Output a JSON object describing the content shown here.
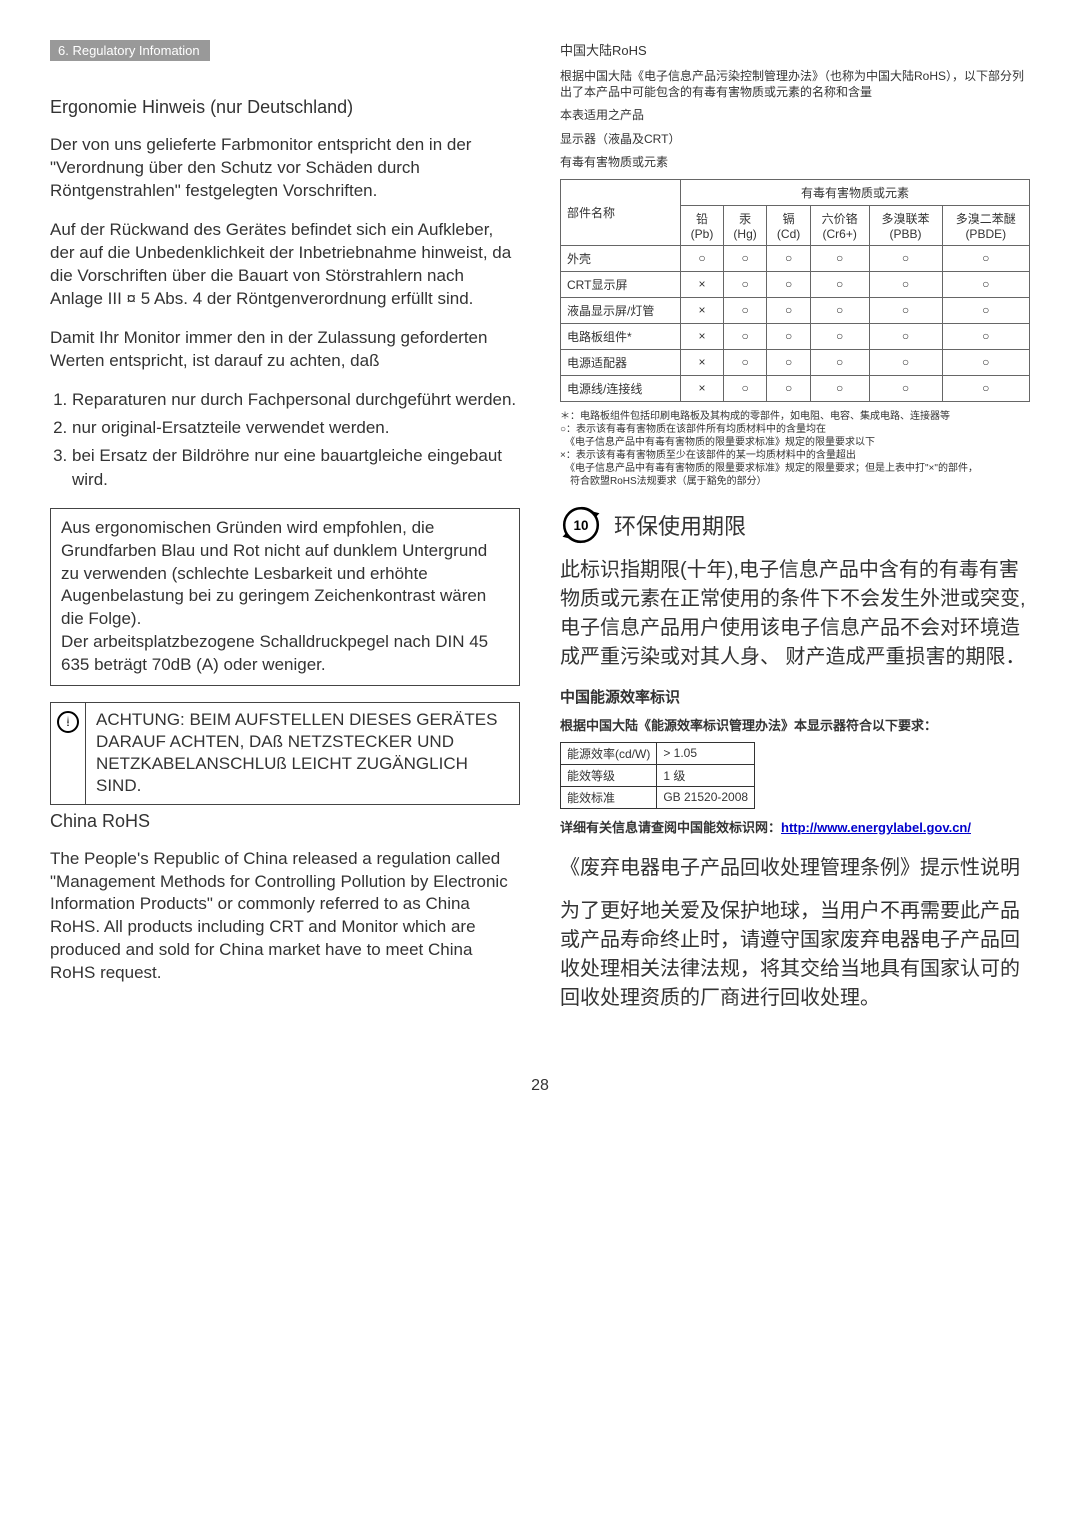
{
  "sectionTag": "6. Regulatory Infomation",
  "left": {
    "ergHeading": "Ergonomie Hinweis (nur Deutschland)",
    "p1": "Der von uns gelieferte Farbmonitor entspricht den in der \"Verordnung über den Schutz vor Schäden durch Röntgenstrahlen\" festgelegten Vorschriften.",
    "p2": "Auf der Rückwand des Gerätes befindet sich ein Aufkleber, der auf die Unbedenklichkeit der Inbetriebnahme hinweist, da die Vorschriften über die Bauart von Störstrahlern nach Anlage III ¤ 5 Abs. 4 der Röntgenverordnung erfüllt sind.",
    "p3": "Damit Ihr Monitor immer den in der Zulassung geforderten Werten entspricht, ist darauf zu achten, daß",
    "li1": "Reparaturen nur durch Fachpersonal durchgeführt werden.",
    "li2": "nur original-Ersatzteile verwendet werden.",
    "li3": "bei Ersatz der Bildröhre nur eine bauartgleiche eingebaut wird.",
    "box1": "Aus ergonomischen Gründen wird empfohlen, die Grundfarben Blau und Rot nicht auf dunklem Untergrund zu verwenden (schlechte Lesbarkeit und erhöhte Augenbelastung bei zu geringem Zeichenkontrast wären die Folge).\nDer arbeitsplatzbezogene Schalldruckpegel nach DIN 45 635 beträgt 70dB (A) oder weniger.",
    "achtung": "ACHTUNG: BEIM AUFSTELLEN DIESES GERÄTES DARAUF ACHTEN, DAß NETZSTECKER UND NETZKABELANSCHLUß LEICHT ZUGÄNGLICH SIND.",
    "chinaHeading": "China RoHS",
    "chinaPara": "The People's Republic of China released a regulation called \"Management Methods for Controlling Pollution by Electronic Information Products\" or commonly referred to as China RoHS. All products including CRT and Monitor which are produced and sold for China market have to meet China RoHS request."
  },
  "right": {
    "titleCN": "中国大陆RoHS",
    "introCN": "根据中国大陆《电子信息产品污染控制管理办法》（也称为中国大陆RoHS），以下部分列出了本产品中可能包含的有毒有害物质或元素的名称和含量",
    "applProd": "本表适用之产品",
    "dispType": "显示器（液晶及CRT）",
    "toxTitle": "有毒有害物质或元素",
    "table": {
      "nameHeader": "部件名称",
      "groupHeader": "有毒有害物质或元素",
      "cols": [
        {
          "zh": "铅",
          "en": "(Pb)"
        },
        {
          "zh": "汞",
          "en": "(Hg)"
        },
        {
          "zh": "镉",
          "en": "(Cd)"
        },
        {
          "zh": "六价铬",
          "en": "(Cr6+)"
        },
        {
          "zh": "多溴联苯",
          "en": "(PBB)"
        },
        {
          "zh": "多溴二苯醚",
          "en": "(PBDE)"
        }
      ],
      "rows": [
        {
          "name": "外壳",
          "vals": [
            "○",
            "○",
            "○",
            "○",
            "○",
            "○"
          ]
        },
        {
          "name": "CRT显示屏",
          "vals": [
            "×",
            "○",
            "○",
            "○",
            "○",
            "○"
          ]
        },
        {
          "name": "液晶显示屏/灯管",
          "vals": [
            "×",
            "○",
            "○",
            "○",
            "○",
            "○"
          ]
        },
        {
          "name": "电路板组件*",
          "vals": [
            "×",
            "○",
            "○",
            "○",
            "○",
            "○"
          ]
        },
        {
          "name": "电源适配器",
          "vals": [
            "×",
            "○",
            "○",
            "○",
            "○",
            "○"
          ]
        },
        {
          "name": "电源线/连接线",
          "vals": [
            "×",
            "○",
            "○",
            "○",
            "○",
            "○"
          ]
        }
      ]
    },
    "notes": "＊：电路板组件包括印刷电路板及其构成的零部件，如电阻、电容、集成电路、连接器等\n○：表示该有毒有害物质在该部件所有均质材料中的含量均在\n　《电子信息产品中有毒有害物质的限量要求标准》规定的限量要求以下\n×：表示该有毒有害物质至少在该部件的某一均质材料中的含量超出\n　《电子信息产品中有毒有害物质的限量要求标准》规定的限量要求；但是上表中打\"×\"的部件，\n　符合欧盟RoHS法规要求（属于豁免的部分）",
    "envTitle": "环保使用期限",
    "envNum": "10",
    "envPara": "此标识指期限(十年),电子信息产品中含有的有毒有害物质或元素在正常使用的条件下不会发生外泄或突变, 电子信息产品用户使用该电子信息产品不会对环境造成严重污染或对其人身、 财产造成严重损害的期限．",
    "energyHead": "中国能源效率标识",
    "energyIntro": "根据中国大陆《能源效率标识管理办法》本显示器符合以下要求：",
    "energyTable": {
      "rows": [
        {
          "k": "能源效率(cd/W)",
          "v": "> 1.05"
        },
        {
          "k": "能效等级",
          "v": "1 级"
        },
        {
          "k": "能效标准",
          "v": "GB 21520-2008"
        }
      ]
    },
    "linkPrefix": "详细有关信息请查阅中国能效标识网：",
    "linkText": "http://www.energylabel.gov.cn/",
    "recycleTitle": "《废弃电器电子产品回收处理管理条例》提示性说明",
    "recyclePara": "为了更好地关爱及保护地球，当用户不再需要此产品或产品寿命终止时，请遵守国家废弃电器电子产品回收处理相关法律法规，将其交给当地具有国家认可的回收处理资质的厂商进行回收处理。"
  },
  "pageNumber": "28"
}
